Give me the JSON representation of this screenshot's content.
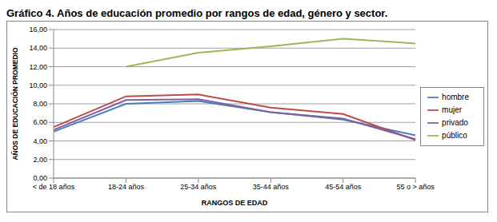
{
  "chart_data": {
    "type": "line",
    "title": "Gráfico 4. Años de educación promedio por rangos de edad, género y sector.",
    "x_label": "RANGOS DE EDAD",
    "y_label": "AÑOS DE EDUCACIÓN PROMEDIO",
    "categories": [
      "< de 18 años",
      "18-24 años",
      "25-34 años",
      "35-44 años",
      "45-54 años",
      "55 o > años"
    ],
    "series": [
      {
        "name": "hombre",
        "color": "#4a7ebb",
        "values": [
          5.0,
          8.0,
          8.3,
          7.1,
          6.3,
          4.6
        ]
      },
      {
        "name": "mujer",
        "color": "#be4b48",
        "values": [
          5.5,
          8.8,
          9.0,
          7.6,
          6.9,
          4.1
        ]
      },
      {
        "name": "público",
        "color": "#98b954",
        "values": [
          null,
          12.0,
          13.5,
          14.2,
          15.0,
          14.5
        ]
      },
      {
        "name": "privado",
        "color": "#7d60a0",
        "values": [
          5.2,
          8.4,
          8.5,
          7.1,
          6.4,
          4.2
        ]
      }
    ],
    "ylim": [
      0,
      16
    ],
    "yticks": [
      {
        "value": 0,
        "label": "0,00"
      },
      {
        "value": 2,
        "label": "2,00"
      },
      {
        "value": 4,
        "label": "4,00"
      },
      {
        "value": 6,
        "label": "6,00"
      },
      {
        "value": 8,
        "label": "8,00"
      },
      {
        "value": 10,
        "label": "10,00"
      },
      {
        "value": 12,
        "label": "12,00"
      },
      {
        "value": 14,
        "label": "14,00"
      },
      {
        "value": 16,
        "label": "16,00"
      }
    ],
    "grid": true,
    "legend": "right"
  }
}
